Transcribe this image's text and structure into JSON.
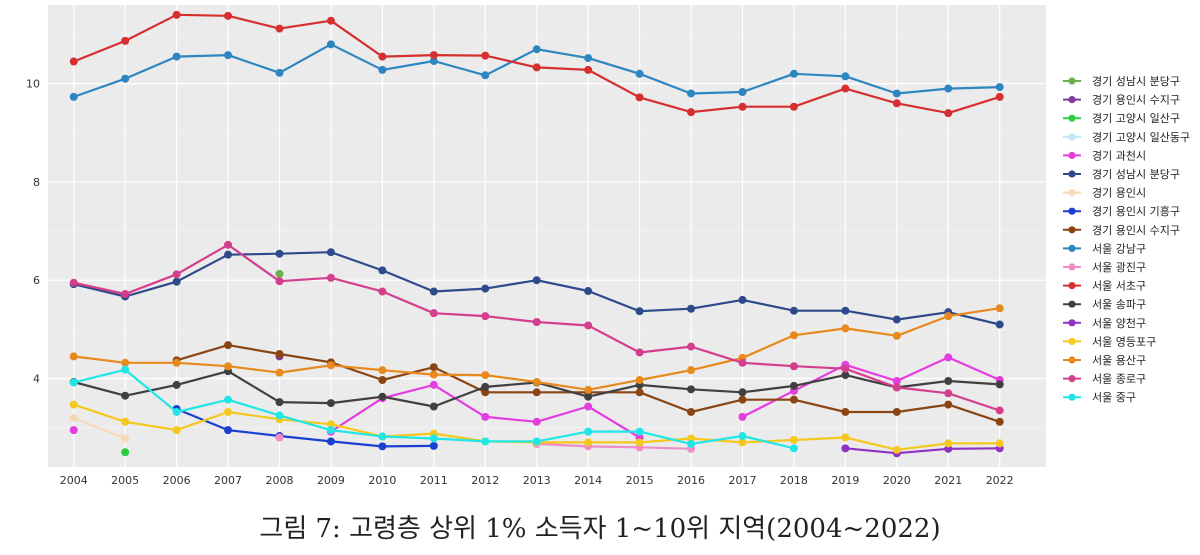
{
  "chart_data": {
    "type": "line",
    "title": "",
    "xlabel": "",
    "ylabel": "",
    "x": [
      2004,
      2005,
      2006,
      2007,
      2008,
      2009,
      2010,
      2011,
      2012,
      2013,
      2014,
      2015,
      2016,
      2017,
      2018,
      2019,
      2020,
      2021,
      2022
    ],
    "xlim": [
      2003.5,
      2022.9
    ],
    "ylim": [
      2.2,
      11.6
    ],
    "yticks": [
      4,
      6,
      8,
      10
    ],
    "grid": true,
    "legend_position": "right",
    "series": [
      {
        "name": "경기 성남시 분당구",
        "color": "#6ab04c",
        "values": [
          null,
          null,
          null,
          null,
          6.13,
          null,
          null,
          null,
          null,
          null,
          null,
          null,
          null,
          null,
          null,
          null,
          null,
          null,
          null
        ]
      },
      {
        "name": "경기 용인시 수지구",
        "color": "#7d3c98",
        "values": [
          null,
          null,
          null,
          null,
          4.45,
          null,
          null,
          null,
          null,
          null,
          null,
          null,
          null,
          null,
          null,
          null,
          null,
          null,
          null
        ]
      },
      {
        "name": "경기 고양시 일산구",
        "color": "#2ecc40",
        "values": [
          null,
          2.5,
          null,
          null,
          null,
          null,
          null,
          null,
          null,
          null,
          null,
          null,
          null,
          null,
          null,
          null,
          null,
          null,
          null
        ]
      },
      {
        "name": "경기 고양시 일산동구",
        "color": "#bfe6f5",
        "values": [
          null,
          null,
          null,
          null,
          null,
          null,
          null,
          null,
          null,
          null,
          2.7,
          null,
          null,
          null,
          null,
          null,
          null,
          null,
          null
        ]
      },
      {
        "name": "경기 과천시",
        "color": "#e53de0",
        "values": [
          2.95,
          null,
          null,
          null,
          null,
          2.92,
          3.6,
          3.87,
          3.22,
          3.12,
          3.43,
          2.8,
          null,
          3.22,
          3.75,
          4.28,
          3.95,
          4.43,
          3.97
        ]
      },
      {
        "name": "경기 성남시 분당구",
        "color": "#2e4a8b",
        "values": [
          5.92,
          5.67,
          5.97,
          6.52,
          6.54,
          6.57,
          6.2,
          5.77,
          5.83,
          6.0,
          5.78,
          5.37,
          5.42,
          5.6,
          5.38,
          5.38,
          5.2,
          5.35,
          5.1
        ]
      },
      {
        "name": "경기 용인시",
        "color": "#f7d9b8",
        "values": [
          3.2,
          2.78,
          null,
          null,
          null,
          null,
          null,
          null,
          null,
          null,
          null,
          null,
          null,
          null,
          null,
          null,
          null,
          null,
          null
        ]
      },
      {
        "name": "경기 용인시 기흥구",
        "color": "#1a3fd1",
        "values": [
          null,
          null,
          3.38,
          2.95,
          2.83,
          2.72,
          2.62,
          2.63,
          null,
          null,
          null,
          null,
          null,
          null,
          null,
          null,
          null,
          null,
          null
        ]
      },
      {
        "name": "경기 용인시 수지구",
        "color": "#8b4513",
        "values": [
          null,
          null,
          4.37,
          4.68,
          4.5,
          4.33,
          3.97,
          4.23,
          3.72,
          3.72,
          3.72,
          3.72,
          3.32,
          3.57,
          3.57,
          3.32,
          3.32,
          3.47,
          3.12
        ]
      },
      {
        "name": "서울 강남구",
        "color": "#2e86c1",
        "values": [
          9.73,
          10.1,
          10.55,
          10.58,
          10.22,
          10.8,
          10.28,
          10.46,
          10.17,
          10.7,
          10.52,
          10.2,
          9.8,
          9.83,
          10.2,
          10.15,
          9.8,
          9.9,
          9.93
        ]
      },
      {
        "name": "서울 광진구",
        "color": "#f08cc8",
        "values": [
          null,
          null,
          null,
          null,
          2.8,
          null,
          null,
          null,
          null,
          2.67,
          2.62,
          2.6,
          2.57,
          null,
          null,
          null,
          null,
          null,
          null
        ]
      },
      {
        "name": "서울 서초구",
        "color": "#d62f2f",
        "values": [
          10.45,
          10.87,
          11.4,
          11.38,
          11.12,
          11.28,
          10.55,
          10.58,
          10.57,
          10.33,
          10.28,
          9.72,
          9.42,
          9.53,
          9.53,
          9.9,
          9.6,
          9.4,
          9.73
        ]
      },
      {
        "name": "서울 송파구",
        "color": "#404040",
        "values": [
          3.93,
          3.65,
          3.87,
          4.15,
          3.52,
          3.5,
          3.63,
          3.43,
          3.83,
          3.92,
          3.63,
          3.87,
          3.78,
          3.72,
          3.85,
          4.07,
          3.82,
          3.95,
          3.88
        ]
      },
      {
        "name": "서울 양천구",
        "color": "#8e32c4",
        "values": [
          null,
          null,
          null,
          null,
          null,
          null,
          null,
          null,
          null,
          null,
          null,
          null,
          null,
          null,
          null,
          2.58,
          2.48,
          2.57,
          2.58
        ]
      },
      {
        "name": "서울 영등포구",
        "color": "#f4c81e",
        "values": [
          3.47,
          3.12,
          2.95,
          3.32,
          3.17,
          3.07,
          2.82,
          2.88,
          2.72,
          2.7,
          2.7,
          2.7,
          2.78,
          2.7,
          2.75,
          2.8,
          2.55,
          2.68,
          2.68
        ]
      },
      {
        "name": "서울 용산구",
        "color": "#e8891d",
        "values": [
          4.45,
          4.32,
          4.32,
          4.25,
          4.12,
          4.27,
          4.17,
          4.08,
          4.07,
          3.93,
          3.77,
          3.97,
          4.17,
          4.42,
          4.88,
          5.02,
          4.87,
          5.27,
          5.43
        ]
      },
      {
        "name": "서울 종로구",
        "color": "#d43f8d",
        "values": [
          5.95,
          5.72,
          6.12,
          6.72,
          5.98,
          6.05,
          5.77,
          5.33,
          5.27,
          5.15,
          5.08,
          4.53,
          4.65,
          4.32,
          4.25,
          4.2,
          3.82,
          3.7,
          3.35
        ]
      },
      {
        "name": "서울 중구",
        "color": "#22e6e6",
        "values": [
          3.92,
          4.18,
          3.32,
          3.57,
          3.25,
          2.95,
          2.82,
          2.78,
          2.72,
          2.72,
          2.92,
          2.92,
          2.67,
          2.83,
          2.58,
          null,
          null,
          null,
          null
        ]
      }
    ]
  },
  "caption": "그림 7: 고령층 상위 1% 소득자 1~10위 지역(2004~2022)"
}
